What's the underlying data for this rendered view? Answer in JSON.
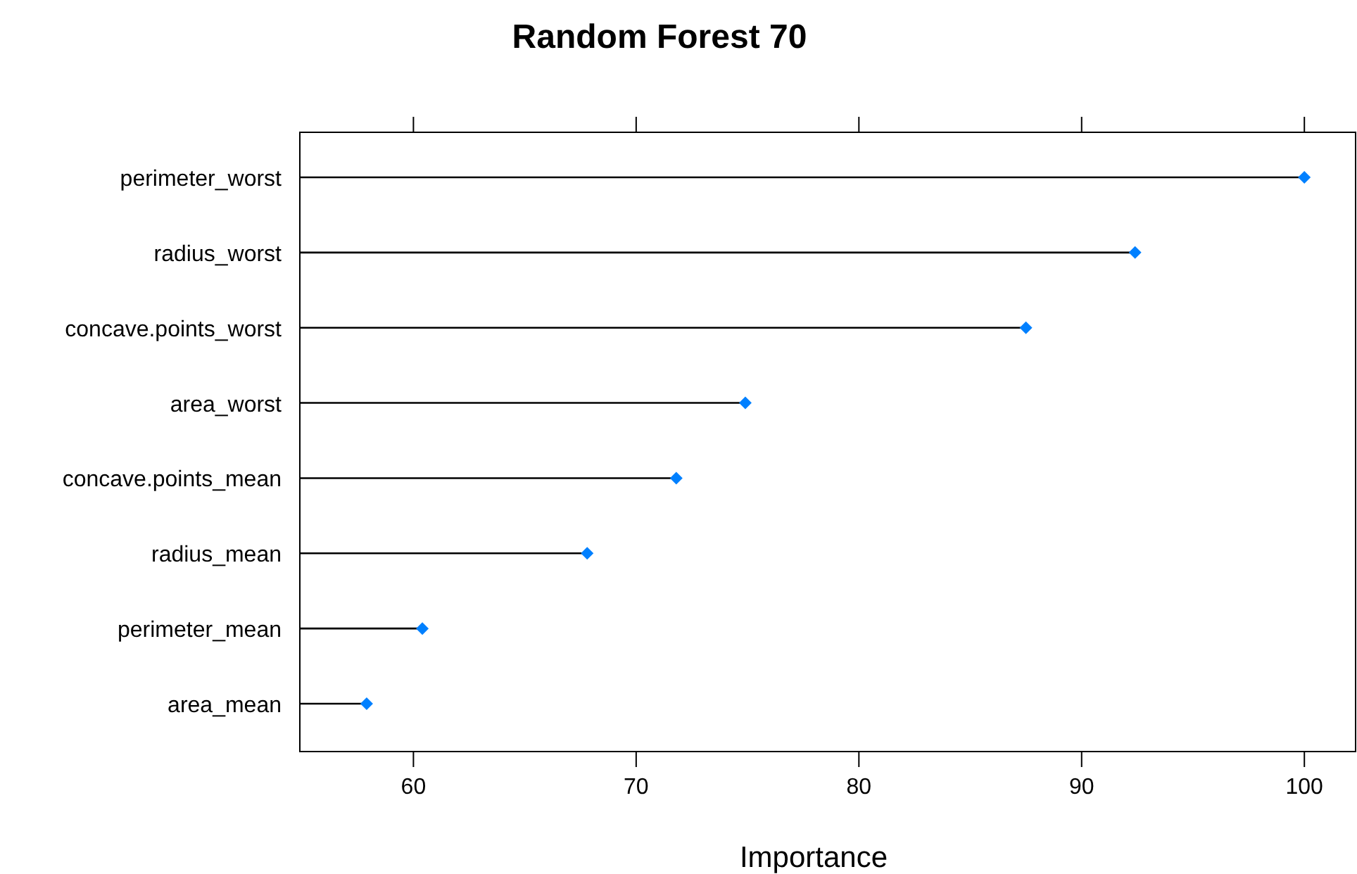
{
  "chart_data": {
    "type": "lollipop",
    "title": "Random Forest 70",
    "xlabel": "Importance",
    "orientation": "horizontal",
    "categories": [
      "perimeter_worst",
      "radius_worst",
      "concave.points_worst",
      "area_worst",
      "concave.points_mean",
      "radius_mean",
      "perimeter_mean",
      "area_mean"
    ],
    "values": [
      100,
      92.4,
      87.5,
      74.9,
      71.8,
      67.8,
      60.4,
      57.9
    ],
    "color": "#0080ff",
    "marker": "diamond",
    "grid": false,
    "xlim": [
      54.9,
      102.3
    ],
    "xticks": [
      60,
      70,
      80,
      90,
      100
    ]
  }
}
